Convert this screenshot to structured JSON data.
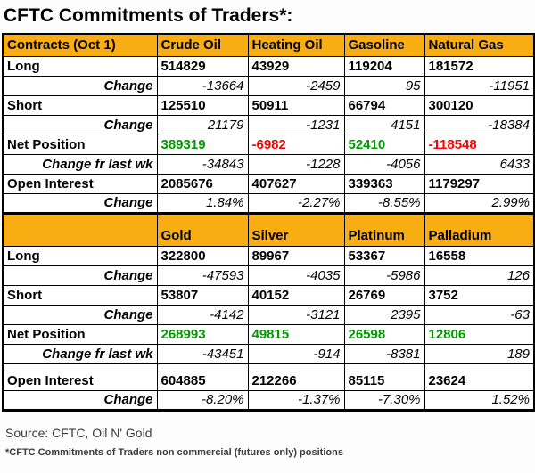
{
  "title": "CFTC Commitments of Traders*:",
  "colors": {
    "header_bg": "#F8AD12",
    "label_bg": "#F8D8B6",
    "green": "#009900",
    "red": "#FF0000"
  },
  "chart_data": {
    "type": "table",
    "title": "CFTC Commitments of Traders*:",
    "sections": [
      {
        "header": [
          "Contracts (Oct 1)",
          "Crude Oil",
          "Heating Oil",
          "Gasoline",
          "Natural Gas"
        ],
        "rows": [
          {
            "label": "Long",
            "type": "position",
            "values": [
              "514829",
              "43929",
              "119204",
              "181572"
            ]
          },
          {
            "label": "Change",
            "type": "change",
            "values": [
              "-13664",
              "-2459",
              "95",
              "-11951"
            ]
          },
          {
            "label": "Short",
            "type": "position",
            "values": [
              "125510",
              "50911",
              "66794",
              "300120"
            ]
          },
          {
            "label": "Change",
            "type": "change",
            "values": [
              "21179",
              "-1231",
              "4151",
              "-18384"
            ]
          },
          {
            "label": "Net Position",
            "type": "net",
            "values": [
              "389319",
              "-6982",
              "52410",
              "-118548"
            ],
            "value_colors": [
              "green",
              "red",
              "green",
              "red"
            ]
          },
          {
            "label": "Change fr last wk",
            "type": "change",
            "values": [
              "-34843",
              "-1228",
              "-4056",
              "6433"
            ]
          },
          {
            "label": "Open Interest",
            "type": "position",
            "values": [
              "2085676",
              "407627",
              "339363",
              "1179297"
            ]
          },
          {
            "label": "Change",
            "type": "change",
            "values": [
              "1.84%",
              "-2.27%",
              "-8.55%",
              "2.99%"
            ]
          }
        ]
      },
      {
        "header": [
          "",
          "Gold",
          "Silver",
          "Platinum",
          "Palladium"
        ],
        "rows": [
          {
            "label": "Long",
            "type": "position",
            "values": [
              "322800",
              "89967",
              "53367",
              "16558"
            ]
          },
          {
            "label": "Change",
            "type": "change",
            "values": [
              "-47593",
              "-4035",
              "-5986",
              "126"
            ]
          },
          {
            "label": "Short",
            "type": "position",
            "values": [
              "53807",
              "40152",
              "26769",
              "3752"
            ]
          },
          {
            "label": "Change",
            "type": "change",
            "values": [
              "-4142",
              "-3121",
              "2395",
              "-63"
            ]
          },
          {
            "label": "Net Position",
            "type": "net",
            "values": [
              "268993",
              "49815",
              "26598",
              "12806"
            ],
            "value_colors": [
              "green",
              "green",
              "green",
              "green"
            ]
          },
          {
            "label": "Change fr last wk",
            "type": "change",
            "values": [
              "-43451",
              "-914",
              "-8381",
              "189"
            ]
          },
          {
            "label": "Open Interest",
            "type": "position",
            "values": [
              "604885",
              "212266",
              "85115",
              "23624"
            ]
          },
          {
            "label": "Change",
            "type": "change",
            "values": [
              "-8.20%",
              "-1.37%",
              "-7.30%",
              "1.52%"
            ]
          }
        ]
      }
    ]
  },
  "footer": {
    "source": "Source: CFTC, Oil N' Gold",
    "footnote": "*CFTC Commitments of Traders non commercial (futures only) positions"
  }
}
